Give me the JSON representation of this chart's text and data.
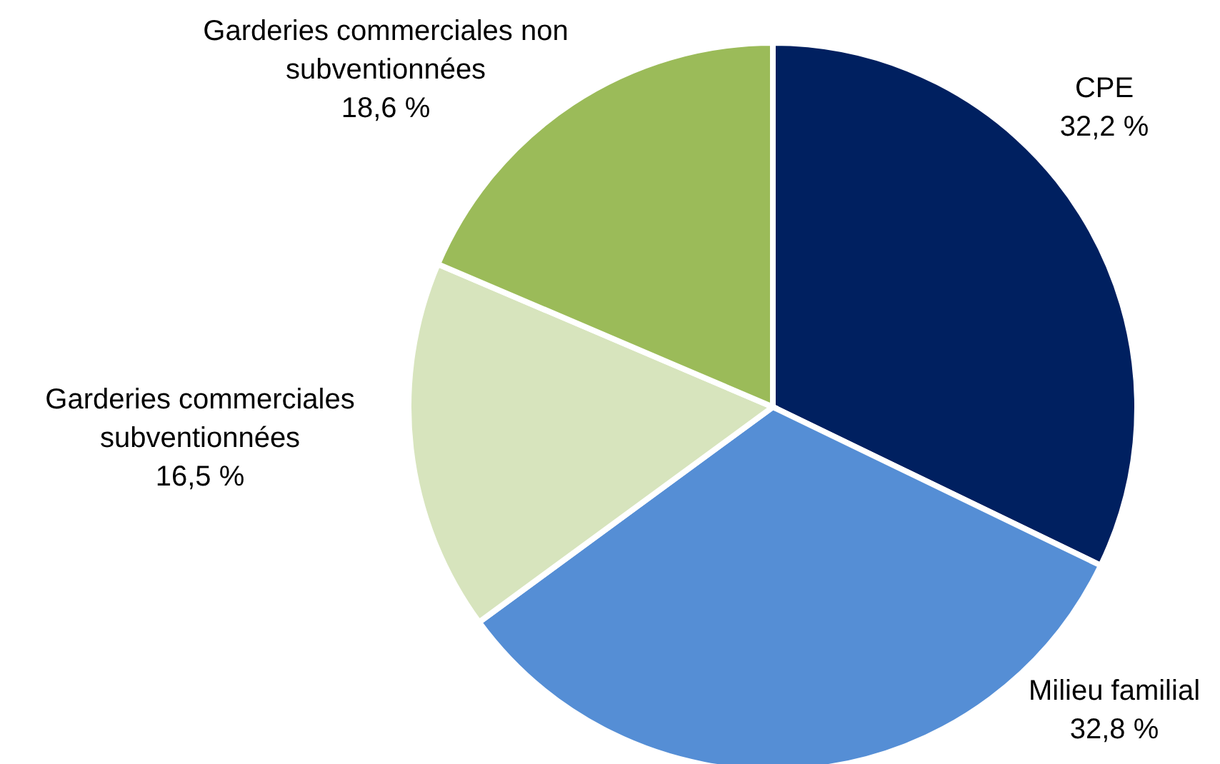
{
  "chart_data": {
    "type": "pie",
    "categories": [
      "CPE",
      "Milieu familial",
      "Garderies commerciales subventionnées",
      "Garderies commerciales non subventionnées"
    ],
    "values": [
      32.2,
      32.8,
      16.5,
      18.6
    ],
    "value_labels": [
      "32,2 %",
      "32,8 %",
      "16,5 %",
      "18,6 %"
    ],
    "colors": [
      "#002060",
      "#558ed5",
      "#d7e4bd",
      "#9bbb59"
    ]
  }
}
